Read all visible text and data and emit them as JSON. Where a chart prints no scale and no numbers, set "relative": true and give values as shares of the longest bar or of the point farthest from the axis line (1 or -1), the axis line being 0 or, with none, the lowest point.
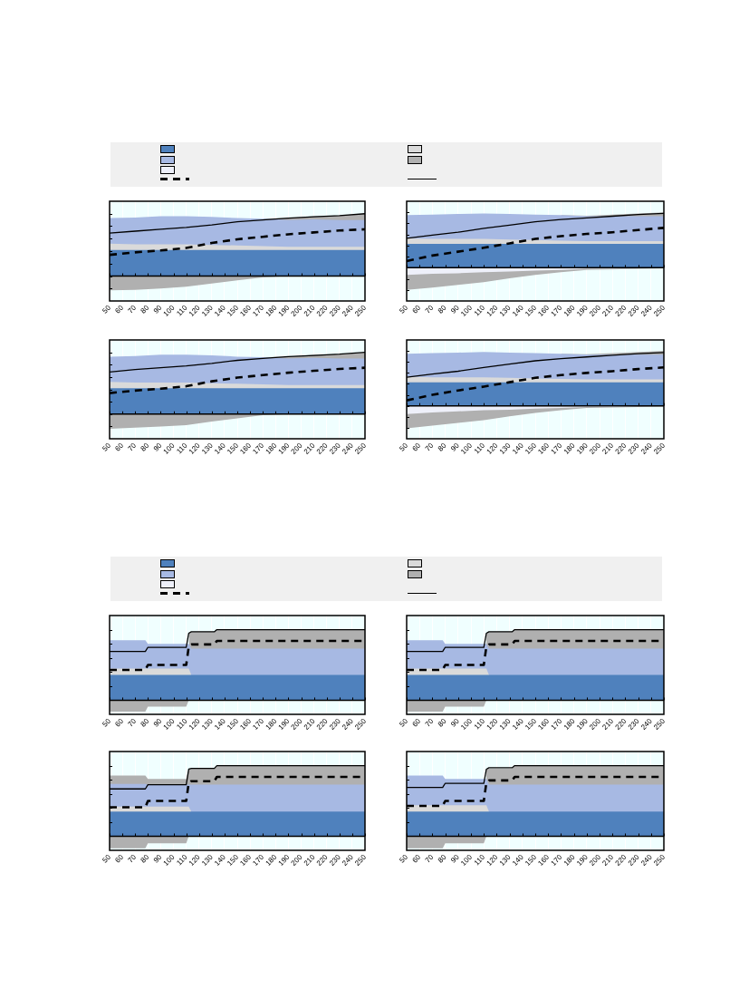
{
  "chart_data": [
    {
      "type": "area",
      "relative": true,
      "grid": "x",
      "x": [
        50,
        70,
        90,
        110,
        130,
        150,
        170,
        190,
        210,
        230,
        250
      ],
      "xlim": [
        50,
        250
      ],
      "xticks": [
        50,
        60,
        70,
        80,
        90,
        100,
        110,
        120,
        130,
        140,
        150,
        160,
        170,
        180,
        190,
        200,
        210,
        220,
        230,
        240,
        250
      ],
      "series": [
        {
          "color": "#4f81bd",
          "values": [
            0.42,
            0.42,
            0.42,
            0.42,
            0.42,
            0.42,
            0.42,
            0.42,
            0.42,
            0.42,
            0.42
          ]
        },
        {
          "color": "#dadada",
          "values": [
            0.52,
            0.51,
            0.51,
            0.51,
            0.5,
            0.49,
            0.48,
            0.47,
            0.47,
            0.47,
            0.47
          ]
        },
        {
          "color": "#a7b9e3",
          "values": [
            0.93,
            0.94,
            0.96,
            0.96,
            0.95,
            0.93,
            0.92,
            0.9,
            0.91,
            0.9,
            0.9
          ]
        },
        {
          "color": "#b0b0b0",
          "values": [
            null,
            null,
            null,
            null,
            null,
            null,
            0.92,
            0.93,
            0.96,
            0.97,
            1.0
          ]
        },
        {
          "color": "#eef0fa",
          "values": [
            null,
            null,
            null,
            null,
            null,
            null,
            null,
            null,
            null,
            null,
            null
          ]
        },
        {
          "color": "#b0b0b0",
          "values": [
            -0.23,
            -0.22,
            -0.2,
            -0.17,
            -0.12,
            -0.07,
            -0.02,
            0,
            null,
            null,
            null
          ]
        },
        {
          "type": "line",
          "line_style": "dashed",
          "color": "#000000",
          "values": [
            0.34,
            0.38,
            0.41,
            0.45,
            0.53,
            0.59,
            0.63,
            0.67,
            0.7,
            0.73,
            0.75
          ]
        },
        {
          "type": "line",
          "line_style": "solid",
          "color": "#000000",
          "values": [
            0.69,
            0.72,
            0.75,
            0.78,
            0.82,
            0.87,
            0.9,
            0.93,
            0.95,
            0.97,
            1.0
          ]
        }
      ]
    },
    {
      "type": "area",
      "relative": true,
      "grid": "x",
      "x": [
        50,
        70,
        90,
        110,
        130,
        150,
        170,
        190,
        210,
        230,
        250
      ],
      "xlim": [
        50,
        250
      ],
      "xticks": [
        50,
        60,
        70,
        80,
        90,
        100,
        110,
        120,
        130,
        140,
        150,
        160,
        170,
        180,
        190,
        200,
        210,
        220,
        230,
        240,
        250
      ],
      "series": [
        {
          "color": "#4f81bd",
          "values": [
            0.43,
            0.43,
            0.43,
            0.43,
            0.43,
            0.43,
            0.43,
            0.43,
            0.43,
            0.43,
            0.43
          ]
        },
        {
          "color": "#dadada",
          "values": [
            0.53,
            0.52,
            0.52,
            0.52,
            0.51,
            0.5,
            0.49,
            0.48,
            0.48,
            0.48,
            0.48
          ]
        },
        {
          "color": "#a7b9e3",
          "values": [
            0.95,
            0.96,
            0.97,
            0.98,
            0.97,
            0.96,
            0.95,
            0.93,
            0.93,
            0.93,
            0.93
          ]
        },
        {
          "color": "#b0b0b0",
          "values": [
            null,
            null,
            null,
            null,
            null,
            null,
            0.95,
            0.94,
            0.96,
            0.98,
            1.0
          ]
        },
        {
          "color": "#eef0fa",
          "values": [
            -0.13,
            -0.11,
            -0.1,
            -0.08,
            -0.07,
            -0.05,
            -0.04,
            -0.02,
            -0.02,
            -0.01,
            -0.01
          ]
        },
        {
          "color": "#b0b0b0",
          "values": [
            -0.4,
            -0.36,
            -0.31,
            -0.26,
            -0.19,
            -0.13,
            -0.08,
            -0.04,
            -0.03,
            -0.02,
            -0.01
          ]
        },
        {
          "type": "line",
          "line_style": "dashed",
          "color": "#000000",
          "values": [
            0.12,
            0.22,
            0.29,
            0.36,
            0.44,
            0.52,
            0.57,
            0.61,
            0.64,
            0.68,
            0.72
          ]
        },
        {
          "type": "line",
          "line_style": "solid",
          "color": "#000000",
          "values": [
            0.53,
            0.59,
            0.64,
            0.71,
            0.77,
            0.83,
            0.87,
            0.9,
            0.93,
            0.96,
            0.98
          ]
        }
      ]
    },
    {
      "type": "area",
      "relative": true,
      "grid": "x",
      "x": [
        50,
        70,
        90,
        110,
        130,
        150,
        170,
        190,
        210,
        230,
        250
      ],
      "xlim": [
        50,
        250
      ],
      "xticks": [
        50,
        60,
        70,
        80,
        90,
        100,
        110,
        120,
        130,
        140,
        150,
        160,
        170,
        180,
        190,
        200,
        210,
        220,
        230,
        240,
        250
      ],
      "series": [
        {
          "color": "#4f81bd",
          "values": [
            0.42,
            0.42,
            0.42,
            0.42,
            0.42,
            0.42,
            0.42,
            0.42,
            0.42,
            0.42,
            0.42
          ]
        },
        {
          "color": "#dadada",
          "values": [
            0.52,
            0.51,
            0.51,
            0.51,
            0.5,
            0.49,
            0.48,
            0.47,
            0.47,
            0.47,
            0.47
          ]
        },
        {
          "color": "#a7b9e3",
          "values": [
            0.93,
            0.94,
            0.96,
            0.96,
            0.95,
            0.93,
            0.92,
            0.9,
            0.91,
            0.9,
            0.9
          ]
        },
        {
          "color": "#b0b0b0",
          "values": [
            null,
            null,
            null,
            null,
            null,
            null,
            0.92,
            0.93,
            0.96,
            0.97,
            1.0
          ]
        },
        {
          "color": "#eef0fa",
          "values": [
            null,
            null,
            null,
            null,
            null,
            null,
            null,
            null,
            null,
            null,
            null
          ]
        },
        {
          "color": "#b0b0b0",
          "values": [
            -0.24,
            -0.22,
            -0.2,
            -0.18,
            -0.12,
            -0.07,
            -0.02,
            0,
            null,
            null,
            null
          ]
        },
        {
          "type": "line",
          "line_style": "dashed",
          "color": "#000000",
          "values": [
            0.34,
            0.38,
            0.41,
            0.45,
            0.53,
            0.59,
            0.63,
            0.67,
            0.7,
            0.73,
            0.75
          ]
        },
        {
          "type": "line",
          "line_style": "solid",
          "color": "#000000",
          "values": [
            0.68,
            0.72,
            0.75,
            0.78,
            0.82,
            0.87,
            0.9,
            0.93,
            0.95,
            0.97,
            1.0
          ]
        }
      ]
    },
    {
      "type": "area",
      "relative": true,
      "grid": "x",
      "x": [
        50,
        70,
        90,
        110,
        130,
        150,
        170,
        190,
        210,
        230,
        250
      ],
      "xlim": [
        50,
        250
      ],
      "xticks": [
        50,
        60,
        70,
        80,
        90,
        100,
        110,
        120,
        130,
        140,
        150,
        160,
        170,
        180,
        190,
        200,
        210,
        220,
        230,
        240,
        250
      ],
      "series": [
        {
          "color": "#4f81bd",
          "values": [
            0.43,
            0.43,
            0.43,
            0.43,
            0.43,
            0.43,
            0.43,
            0.43,
            0.43,
            0.43,
            0.43
          ]
        },
        {
          "color": "#dadada",
          "values": [
            0.53,
            0.52,
            0.52,
            0.52,
            0.51,
            0.5,
            0.49,
            0.48,
            0.48,
            0.48,
            0.48
          ]
        },
        {
          "color": "#a7b9e3",
          "values": [
            0.95,
            0.96,
            0.97,
            0.98,
            0.97,
            0.96,
            0.95,
            0.93,
            0.93,
            0.93,
            0.93
          ]
        },
        {
          "color": "#b0b0b0",
          "values": [
            null,
            null,
            null,
            null,
            null,
            null,
            0.95,
            0.94,
            0.96,
            0.98,
            1.0
          ]
        },
        {
          "color": "#eef0fa",
          "values": [
            -0.15,
            -0.12,
            -0.1,
            -0.08,
            -0.07,
            -0.05,
            -0.04,
            -0.02,
            -0.02,
            -0.01,
            -0.01
          ]
        },
        {
          "color": "#b0b0b0",
          "values": [
            -0.41,
            -0.36,
            -0.31,
            -0.26,
            -0.19,
            -0.13,
            -0.08,
            -0.04,
            -0.03,
            -0.02,
            -0.01
          ]
        },
        {
          "type": "line",
          "line_style": "dashed",
          "color": "#000000",
          "values": [
            0.1,
            0.2,
            0.28,
            0.35,
            0.43,
            0.51,
            0.56,
            0.6,
            0.63,
            0.67,
            0.7
          ]
        },
        {
          "type": "line",
          "line_style": "solid",
          "color": "#000000",
          "values": [
            0.52,
            0.58,
            0.63,
            0.7,
            0.76,
            0.82,
            0.86,
            0.89,
            0.92,
            0.95,
            0.97
          ]
        }
      ]
    },
    {
      "type": "area",
      "relative": true,
      "grid": "x",
      "x": [
        50,
        78,
        80,
        110,
        112,
        114,
        132,
        134,
        250
      ],
      "xlim": [
        50,
        250
      ],
      "xticks": [
        50,
        60,
        70,
        80,
        90,
        100,
        110,
        120,
        130,
        140,
        150,
        160,
        170,
        180,
        190,
        200,
        210,
        220,
        230,
        240,
        250
      ],
      "series": [
        {
          "color": "#4f81bd",
          "values": [
            0.36,
            0.36,
            0.36,
            0.36,
            0.36,
            0.36,
            0.36,
            0.36,
            0.36
          ]
        },
        {
          "color": "#dadada",
          "values": [
            0.45,
            0.45,
            0.45,
            0.45,
            0.45,
            0.36,
            null,
            null,
            null
          ]
        },
        {
          "color": "#a7b9e3",
          "values": [
            0.85,
            0.85,
            0.8,
            0.8,
            0.8,
            0.73,
            0.73,
            0.73,
            0.73
          ]
        },
        {
          "color": "#b0b0b0",
          "values": [
            null,
            null,
            null,
            null,
            0.95,
            0.97,
            0.97,
            1.0,
            1.0
          ]
        },
        {
          "color": "#eef0fa",
          "values": [
            null,
            null,
            null,
            null,
            null,
            null,
            null,
            null,
            null
          ]
        },
        {
          "color": "#b0b0b0",
          "values": [
            -0.16,
            -0.16,
            -0.09,
            -0.09,
            0,
            null,
            null,
            null,
            null
          ]
        },
        {
          "type": "line",
          "line_style": "dashed",
          "color": "#000000",
          "values": [
            0.43,
            0.43,
            0.5,
            0.5,
            0.76,
            0.79,
            0.79,
            0.84,
            0.84
          ]
        },
        {
          "type": "line",
          "line_style": "solid",
          "color": "#000000",
          "values": [
            0.69,
            0.69,
            0.75,
            0.75,
            0.95,
            0.97,
            0.97,
            1.0,
            1.0
          ]
        }
      ]
    },
    {
      "type": "area",
      "relative": true,
      "grid": "x",
      "x": [
        50,
        78,
        80,
        110,
        112,
        114,
        132,
        134,
        250
      ],
      "xlim": [
        50,
        250
      ],
      "xticks": [
        50,
        60,
        70,
        80,
        90,
        100,
        110,
        120,
        130,
        140,
        150,
        160,
        170,
        180,
        190,
        200,
        210,
        220,
        230,
        240,
        250
      ],
      "series": [
        {
          "color": "#4f81bd",
          "values": [
            0.36,
            0.36,
            0.36,
            0.36,
            0.36,
            0.36,
            0.36,
            0.36,
            0.36
          ]
        },
        {
          "color": "#dadada",
          "values": [
            0.45,
            0.45,
            0.45,
            0.45,
            0.45,
            0.36,
            null,
            null,
            null
          ]
        },
        {
          "color": "#a7b9e3",
          "values": [
            0.85,
            0.85,
            0.8,
            0.8,
            0.8,
            0.73,
            0.73,
            0.73,
            0.73
          ]
        },
        {
          "color": "#b0b0b0",
          "values": [
            null,
            null,
            null,
            null,
            0.95,
            0.97,
            0.97,
            1.0,
            1.0
          ]
        },
        {
          "color": "#eef0fa",
          "values": [
            null,
            null,
            null,
            null,
            null,
            null,
            null,
            null,
            null
          ]
        },
        {
          "color": "#b0b0b0",
          "values": [
            -0.16,
            -0.16,
            -0.09,
            -0.09,
            0,
            null,
            null,
            null,
            null
          ]
        },
        {
          "type": "line",
          "line_style": "dashed",
          "color": "#000000",
          "values": [
            0.43,
            0.43,
            0.5,
            0.5,
            0.76,
            0.79,
            0.79,
            0.84,
            0.84
          ]
        },
        {
          "type": "line",
          "line_style": "solid",
          "color": "#000000",
          "values": [
            0.69,
            0.69,
            0.75,
            0.75,
            0.95,
            0.97,
            0.97,
            1.0,
            1.0
          ]
        }
      ]
    },
    {
      "type": "area",
      "relative": true,
      "grid": "x",
      "x": [
        50,
        78,
        80,
        110,
        112,
        114,
        132,
        134,
        250
      ],
      "xlim": [
        50,
        250
      ],
      "xticks": [
        50,
        60,
        70,
        80,
        90,
        100,
        110,
        120,
        130,
        140,
        150,
        160,
        170,
        180,
        190,
        200,
        210,
        220,
        230,
        240,
        250
      ],
      "series": [
        {
          "color": "#4f81bd",
          "values": [
            0.35,
            0.35,
            0.35,
            0.35,
            0.35,
            0.35,
            0.35,
            0.35,
            0.35
          ]
        },
        {
          "color": "#dadada",
          "values": [
            0.42,
            0.42,
            0.42,
            0.42,
            0.42,
            0.35,
            null,
            null,
            null
          ]
        },
        {
          "color": "#a7b9e3",
          "values": [
            0.74,
            0.74,
            0.73,
            0.73,
            0.73,
            0.73,
            0.73,
            0.73,
            0.73
          ]
        },
        {
          "color": "#b0b0b0",
          "values": [
            0.86,
            0.86,
            0.81,
            0.81,
            0.95,
            0.96,
            0.96,
            1.0,
            1.0
          ]
        },
        {
          "color": "#eef0fa",
          "values": [
            null,
            null,
            null,
            null,
            null,
            null,
            null,
            null,
            null
          ]
        },
        {
          "color": "#b0b0b0",
          "values": [
            -0.17,
            -0.17,
            -0.1,
            -0.1,
            0,
            null,
            null,
            null,
            null
          ]
        },
        {
          "type": "line",
          "line_style": "dashed",
          "color": "#000000",
          "values": [
            0.41,
            0.41,
            0.5,
            0.5,
            0.76,
            0.78,
            0.78,
            0.84,
            0.84
          ]
        },
        {
          "type": "line",
          "line_style": "solid",
          "color": "#000000",
          "values": [
            0.67,
            0.67,
            0.73,
            0.73,
            0.95,
            0.96,
            0.96,
            1.0,
            1.0
          ]
        }
      ]
    },
    {
      "type": "area",
      "relative": true,
      "grid": "x",
      "x": [
        50,
        78,
        80,
        110,
        112,
        114,
        132,
        134,
        250
      ],
      "xlim": [
        50,
        250
      ],
      "xticks": [
        50,
        60,
        70,
        80,
        90,
        100,
        110,
        120,
        130,
        140,
        150,
        160,
        170,
        180,
        190,
        200,
        210,
        220,
        230,
        240,
        250
      ],
      "series": [
        {
          "color": "#4f81bd",
          "values": [
            0.35,
            0.35,
            0.35,
            0.35,
            0.35,
            0.35,
            0.35,
            0.35,
            0.35
          ]
        },
        {
          "color": "#dadada",
          "values": [
            0.44,
            0.44,
            0.44,
            0.44,
            0.44,
            0.35,
            null,
            null,
            null
          ]
        },
        {
          "color": "#a7b9e3",
          "values": [
            0.86,
            0.86,
            0.81,
            0.81,
            0.81,
            0.73,
            0.73,
            0.73,
            0.73
          ]
        },
        {
          "color": "#b0b0b0",
          "values": [
            null,
            null,
            null,
            null,
            0.95,
            0.96,
            0.96,
            1.0,
            1.0
          ]
        },
        {
          "color": "#eef0fa",
          "values": [
            null,
            null,
            null,
            null,
            null,
            null,
            null,
            null,
            null
          ]
        },
        {
          "color": "#b0b0b0",
          "values": [
            -0.17,
            -0.17,
            -0.1,
            -0.1,
            0,
            null,
            null,
            null,
            null
          ]
        },
        {
          "type": "line",
          "line_style": "dashed",
          "color": "#000000",
          "values": [
            0.43,
            0.43,
            0.5,
            0.5,
            0.76,
            0.79,
            0.79,
            0.84,
            0.84
          ]
        },
        {
          "type": "line",
          "line_style": "solid",
          "color": "#000000",
          "values": [
            0.69,
            0.69,
            0.75,
            0.75,
            0.95,
            0.97,
            0.97,
            1.0,
            1.0
          ]
        }
      ]
    }
  ]
}
